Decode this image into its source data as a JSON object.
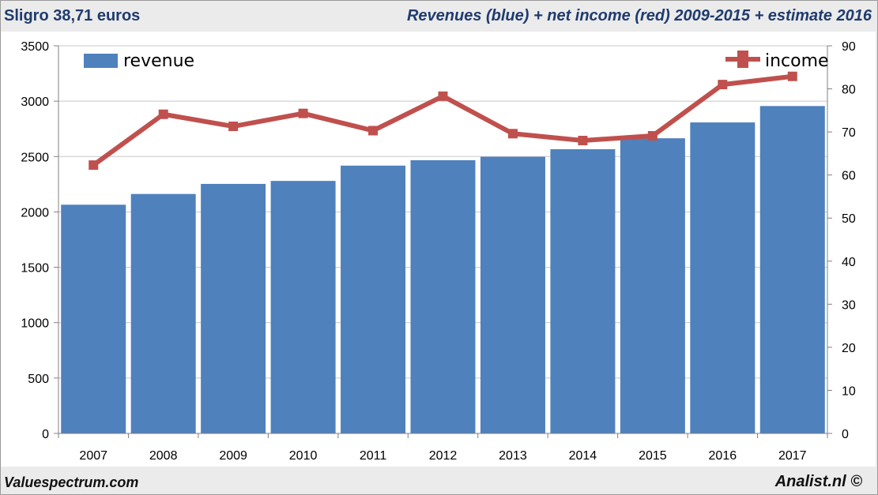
{
  "header": {
    "left_title": "Sligro 38,71 euros",
    "right_title": "Revenues (blue) + net income (red) 2009-2015 + estimate 2016"
  },
  "footer": {
    "left": "Valuespectrum.com",
    "right": "Analist.nl ©"
  },
  "chart_data": {
    "type": "bar",
    "categories": [
      "2007",
      "2008",
      "2009",
      "2010",
      "2011",
      "2012",
      "2013",
      "2014",
      "2015",
      "2016",
      "2017"
    ],
    "series": [
      {
        "name": "revenue",
        "type": "bar",
        "axis": "left",
        "color": "#4f81bd",
        "values": [
          2065,
          2162,
          2253,
          2280,
          2418,
          2467,
          2498,
          2566,
          2665,
          2808,
          2956
        ]
      },
      {
        "name": "income",
        "type": "line",
        "axis": "right",
        "color": "#c0504d",
        "values": [
          62.3,
          74.1,
          71.3,
          74.3,
          70.3,
          78.3,
          69.6,
          68.0,
          69.1,
          81.0,
          82.9
        ]
      }
    ],
    "y_left": {
      "ylim": [
        0,
        3500
      ],
      "ticks": [
        "0",
        "500",
        "1000",
        "1500",
        "2000",
        "2500",
        "3000",
        "3500"
      ]
    },
    "y_right": {
      "ylim": [
        0,
        90
      ],
      "ticks": [
        "0",
        "10",
        "20",
        "30",
        "40",
        "50",
        "60",
        "70",
        "80",
        "90"
      ]
    },
    "grid": true,
    "legend": {
      "revenue": "top-left",
      "income": "top-right"
    }
  }
}
